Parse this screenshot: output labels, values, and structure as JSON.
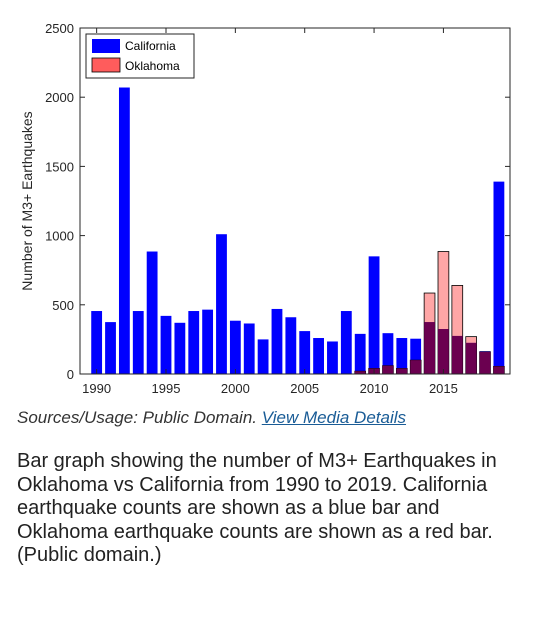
{
  "chart_data": {
    "type": "bar",
    "overlay": true,
    "x": [
      1990,
      1991,
      1992,
      1993,
      1994,
      1995,
      1996,
      1997,
      1998,
      1999,
      2000,
      2001,
      2002,
      2003,
      2004,
      2005,
      2006,
      2007,
      2008,
      2009,
      2010,
      2011,
      2012,
      2013,
      2014,
      2015,
      2016,
      2017,
      2018,
      2019
    ],
    "series": [
      {
        "name": "California",
        "color": "#0000ff",
        "values": [
          455,
          375,
          2070,
          455,
          885,
          420,
          370,
          455,
          465,
          1010,
          385,
          365,
          250,
          470,
          410,
          310,
          260,
          235,
          455,
          290,
          850,
          295,
          260,
          255,
          375,
          325,
          275,
          225,
          165,
          1390
        ]
      },
      {
        "name": "Oklahoma",
        "color": "#ff5c5c",
        "overlap_color": "#6b0050",
        "values": [
          0,
          0,
          0,
          0,
          0,
          0,
          0,
          0,
          0,
          0,
          0,
          0,
          0,
          0,
          0,
          0,
          0,
          0,
          0,
          20,
          40,
          60,
          40,
          100,
          585,
          885,
          640,
          270,
          160,
          55
        ]
      }
    ],
    "xticks": [
      1990,
      1995,
      2000,
      2005,
      2010,
      2015
    ],
    "yticks": [
      0,
      500,
      1000,
      1500,
      2000,
      2500
    ],
    "ylim": [
      0,
      2500
    ],
    "xlabel": "",
    "ylabel": "Number of M3+ Earthquakes",
    "legend": {
      "position": "top-left",
      "entries": [
        "California",
        "Oklahoma"
      ]
    },
    "grid": false
  },
  "credit": {
    "prefix": "Sources/Usage: Public Domain.",
    "link": "View Media Details"
  },
  "caption": "Bar graph showing the number of M3+ Earthquakes in Oklahoma vs California from 1990 to 2019. California earthquake counts are shown as a blue bar and Oklahoma earthquake counts are shown as a red bar. (Public domain.)"
}
